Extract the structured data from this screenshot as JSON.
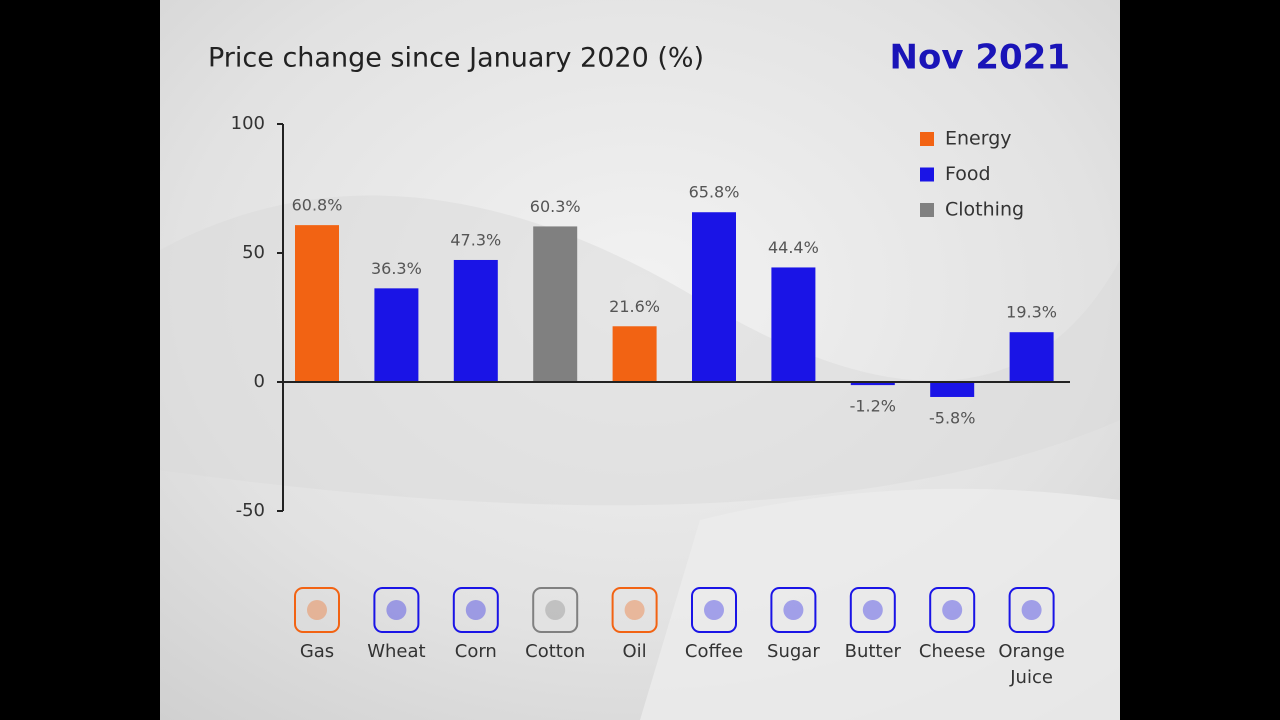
{
  "chart_data": {
    "type": "bar",
    "subtitle": "Price change since January 2020 (%)",
    "date": "Nov 2021",
    "categories": [
      "Gas",
      "Wheat",
      "Corn",
      "Cotton",
      "Oil",
      "Coffee",
      "Sugar",
      "Butter",
      "Cheese",
      "Orange Juice"
    ],
    "series": [
      {
        "name": "Energy",
        "color": "#f26313",
        "values": [
          60.8,
          null,
          null,
          null,
          21.6,
          null,
          null,
          null,
          null,
          null
        ],
        "value_labels": [
          "60.8%",
          null,
          null,
          null,
          "21.6%",
          null,
          null,
          null,
          null,
          null
        ]
      },
      {
        "name": "Food",
        "color": "#1a14e6",
        "values": [
          null,
          36.3,
          47.3,
          null,
          null,
          65.8,
          44.4,
          -1.2,
          -5.8,
          19.3
        ],
        "value_labels": [
          null,
          "36.3%",
          "47.3%",
          null,
          null,
          "65.8%",
          "44.4%",
          "-1.2%",
          "-5.8%",
          "19.3%"
        ]
      },
      {
        "name": "Clothing",
        "color": "#808080",
        "values": [
          null,
          null,
          null,
          60.3,
          null,
          null,
          null,
          null,
          null,
          null
        ],
        "value_labels": [
          null,
          null,
          null,
          "60.3%",
          null,
          null,
          null,
          null,
          null,
          null
        ]
      }
    ],
    "ylim": [
      -50,
      100
    ],
    "yticks": [
      -50,
      0,
      50,
      100
    ]
  }
}
